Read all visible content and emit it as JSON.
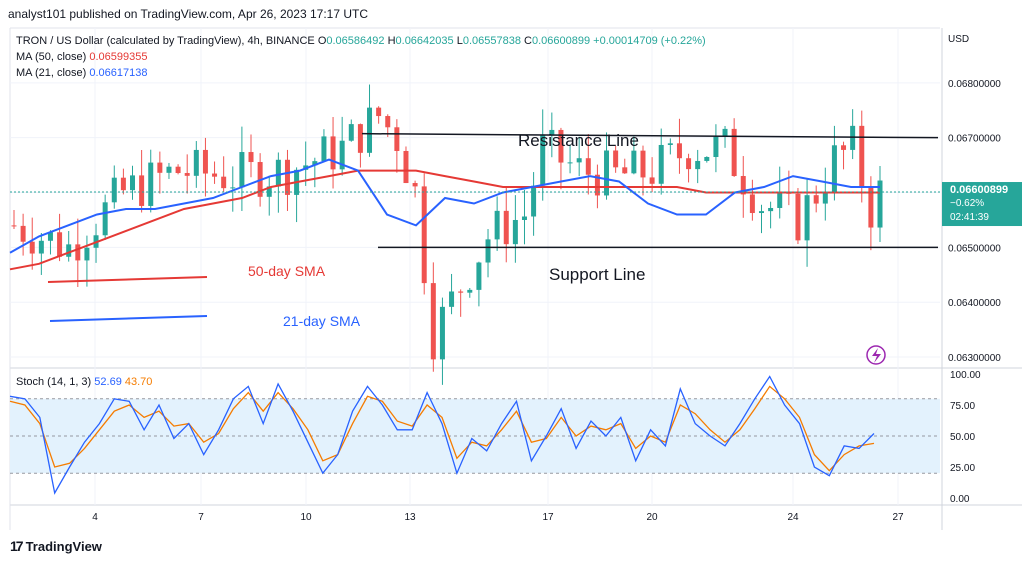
{
  "header": {
    "published": "analyst101 published on TradingView.com, Apr 26, 2023 17:17 UTC"
  },
  "symbol": {
    "title": "TRON / US Dollar (calculated by TradingView), 4h, BINANCE",
    "o_label": "O",
    "o": "0.06586492",
    "h_label": "H",
    "h": "0.06642035",
    "l_label": "L",
    "l": "0.06557838",
    "c_label": "C",
    "c": "0.06600899",
    "change": "+0.00014709 (+0.22%)"
  },
  "indicators": {
    "ma50_label": "MA (50, close)",
    "ma50_value": "0.06599355",
    "ma21_label": "MA (21, close)",
    "ma21_value": "0.06617138"
  },
  "stoch": {
    "label": "Stoch (14, 1, 3)",
    "k": "52.69",
    "d": "43.70"
  },
  "price_badge": {
    "price": "0.06600899",
    "change": "−0.62%",
    "countdown": "02:41:39"
  },
  "currency": "USD",
  "annotations": {
    "resistance": "Resistance Line",
    "support": "Support Line",
    "sma50": "50-day SMA",
    "sma21": "21-day SMA"
  },
  "footer": {
    "brand": "TradingView"
  },
  "colors": {
    "up": "#26a69a",
    "down": "#ef5350",
    "ma50": "#e53935",
    "ma21": "#2962ff",
    "stochK": "#2962ff",
    "stochD": "#f57c00",
    "band": "#e3f2fd"
  },
  "chart_data": {
    "type": "candlestick",
    "ylim": [
      0.0628,
      0.069
    ],
    "yticks": [
      "0.06300000",
      "0.06400000",
      "0.06500000",
      "0.06600000",
      "0.06700000",
      "0.06800000"
    ],
    "xticks": [
      "4",
      "7",
      "10",
      "13",
      "17",
      "20",
      "24",
      "27"
    ],
    "resistance_level": 0.067,
    "support_level": 0.065,
    "ma50": [
      0.0646,
      0.0647,
      0.0649,
      0.0651,
      0.0653,
      0.0655,
      0.0657,
      0.0658,
      0.0659,
      0.0661,
      0.0662,
      0.0663,
      0.0664,
      0.0664,
      0.0664,
      0.0663,
      0.0662,
      0.0661,
      0.0661,
      0.0661,
      0.0661,
      0.0661,
      0.0661,
      0.0661,
      0.066,
      0.066,
      0.066,
      0.066,
      0.066,
      0.066,
      0.066
    ],
    "ma21": [
      0.0649,
      0.0652,
      0.0654,
      0.0656,
      0.0657,
      0.0657,
      0.0658,
      0.0659,
      0.0661,
      0.0663,
      0.0664,
      0.0666,
      0.0664,
      0.0656,
      0.0654,
      0.0659,
      0.0658,
      0.066,
      0.0661,
      0.0662,
      0.0663,
      0.0662,
      0.0658,
      0.0656,
      0.0656,
      0.066,
      0.0661,
      0.0663,
      0.0662,
      0.0661,
      0.0661
    ],
    "stoch_ylim": [
      0,
      100
    ],
    "stoch_yticks": [
      "0.00",
      "25.00",
      "50.00",
      "75.00",
      "100.00"
    ],
    "stoch_k": [
      82,
      80,
      65,
      4,
      25,
      45,
      60,
      80,
      78,
      55,
      75,
      48,
      60,
      35,
      55,
      80,
      90,
      60,
      92,
      70,
      45,
      20,
      35,
      70,
      90,
      75,
      55,
      55,
      85,
      60,
      20,
      48,
      38,
      60,
      78,
      30,
      50,
      72,
      40,
      62,
      50,
      65,
      30,
      55,
      42,
      88,
      60,
      50,
      42,
      60,
      80,
      98,
      75,
      60,
      25,
      18,
      42,
      40,
      52
    ],
    "stoch_d": [
      78,
      75,
      60,
      25,
      28,
      40,
      55,
      70,
      75,
      65,
      70,
      58,
      60,
      45,
      52,
      72,
      85,
      70,
      85,
      72,
      55,
      30,
      35,
      60,
      82,
      78,
      62,
      58,
      75,
      65,
      32,
      45,
      42,
      55,
      70,
      45,
      48,
      65,
      50,
      58,
      55,
      60,
      40,
      50,
      45,
      75,
      68,
      55,
      45,
      55,
      72,
      90,
      80,
      65,
      35,
      22,
      35,
      42,
      44
    ]
  }
}
